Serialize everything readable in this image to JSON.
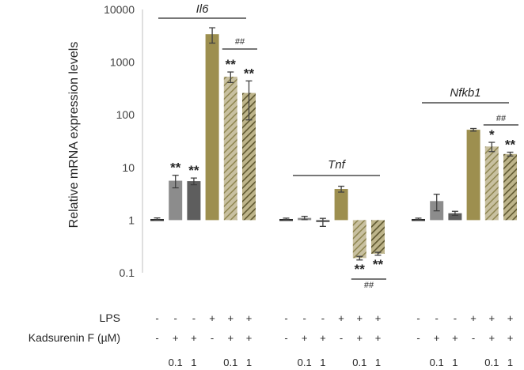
{
  "chart_data": {
    "type": "bar",
    "yscale": "log",
    "ylim": [
      0.1,
      10000
    ],
    "yticks": [
      "0.1",
      "1",
      "10",
      "100",
      "1000",
      "10000"
    ],
    "ylabel": "Relative mRNA expression levels",
    "xlabel": "",
    "title": "",
    "conditions": {
      "row_labels": [
        "LPS",
        "Kadsurenin F (µM)",
        ""
      ],
      "lps": [
        "-",
        "-",
        "-",
        "+",
        "+",
        "+"
      ],
      "kad": [
        "-",
        "+",
        "+",
        "-",
        "+",
        "+"
      ],
      "dose": [
        "",
        "0.1",
        "1",
        "",
        "0.1",
        "1"
      ]
    },
    "groups": [
      {
        "gene": "Il6",
        "values": [
          1.05,
          5.6,
          5.5,
          3400,
          530,
          260
        ],
        "errors": [
          0.05,
          1.5,
          0.8,
          1100,
          120,
          180
        ],
        "stars": [
          "",
          "**",
          "**",
          "",
          "**",
          "**"
        ],
        "hash": "##"
      },
      {
        "gene": "Tnf",
        "values": [
          1.05,
          1.1,
          0.92,
          3.9,
          0.19,
          0.23
        ],
        "errors": [
          0.04,
          0.08,
          0.16,
          0.5,
          0.015,
          0.015
        ],
        "stars": [
          "",
          "",
          "",
          "",
          "**",
          "**"
        ],
        "hash": "##"
      },
      {
        "gene": "Nfkb1",
        "values": [
          1.05,
          2.3,
          1.35,
          52,
          25,
          18
        ],
        "errors": [
          0.04,
          0.8,
          0.12,
          3,
          5,
          1.5
        ],
        "stars": [
          "",
          "",
          "",
          "",
          "*",
          "**"
        ],
        "hash": "##"
      }
    ],
    "bar_styles": [
      {
        "fill": "#2b2b2b",
        "hatch": false
      },
      {
        "fill": "#8c8c8c",
        "hatch": false
      },
      {
        "fill": "#5e5e5e",
        "hatch": false
      },
      {
        "fill": "#9d8f4f",
        "hatch": false
      },
      {
        "fill": "#b5ac7e",
        "hatch": true
      },
      {
        "fill": "#8e8550",
        "hatch": true
      }
    ]
  }
}
